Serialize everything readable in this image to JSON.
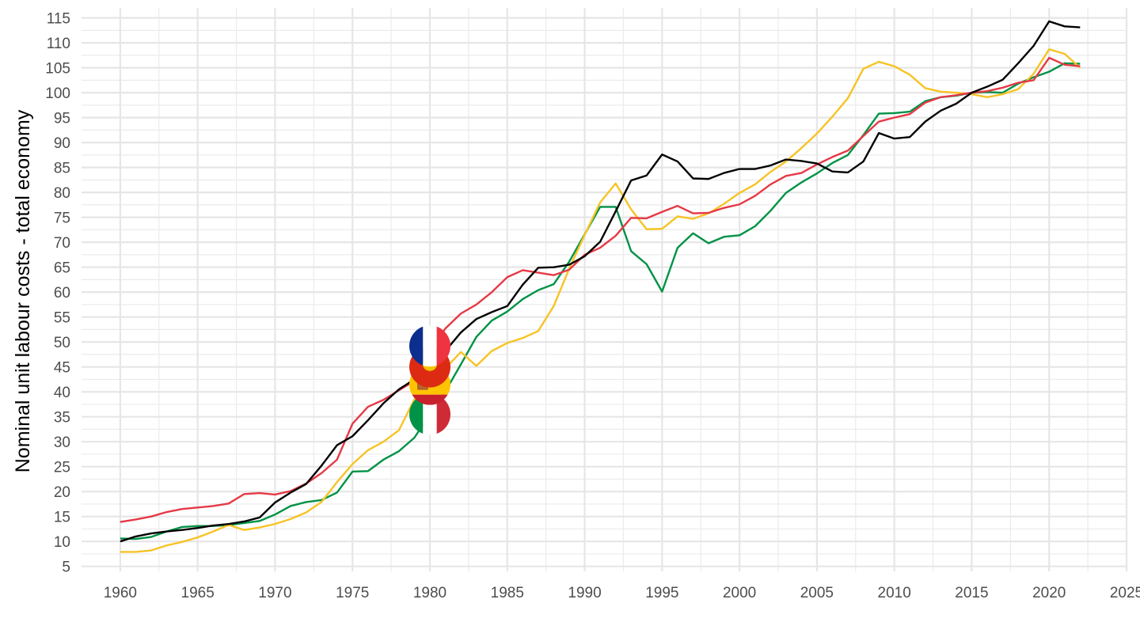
{
  "chart_data": {
    "type": "line",
    "title": "",
    "xlabel": "",
    "ylabel": "Nominal unit labour costs - total economy",
    "xlim": [
      1957.5,
      2025
    ],
    "ylim": [
      4,
      117
    ],
    "x_ticks": [
      1960,
      1965,
      1970,
      1975,
      1980,
      1985,
      1990,
      1995,
      2000,
      2005,
      2010,
      2015,
      2020,
      2025
    ],
    "y_ticks": [
      5,
      10,
      15,
      20,
      25,
      30,
      35,
      40,
      45,
      50,
      55,
      60,
      65,
      70,
      75,
      80,
      85,
      90,
      95,
      100,
      105,
      110,
      115
    ],
    "x_tick_labels": [
      "1960",
      "1965",
      "1970",
      "1975",
      "1980",
      "1985",
      "1990",
      "1995",
      "2000",
      "2005",
      "2010",
      "2015",
      "2020",
      "2025"
    ],
    "y_tick_labels": [
      "5",
      "10",
      "15",
      "20",
      "25",
      "30",
      "35",
      "40",
      "45",
      "50",
      "55",
      "60",
      "65",
      "70",
      "75",
      "80",
      "85",
      "90",
      "95",
      "100",
      "105",
      "110",
      "115"
    ],
    "grid": true,
    "legend": "flag markers at 1980",
    "years": [
      1960,
      1961,
      1962,
      1963,
      1964,
      1965,
      1966,
      1967,
      1968,
      1969,
      1970,
      1971,
      1972,
      1973,
      1974,
      1975,
      1976,
      1977,
      1978,
      1979,
      1980,
      1981,
      1982,
      1983,
      1984,
      1985,
      1986,
      1987,
      1988,
      1989,
      1990,
      1991,
      1992,
      1993,
      1994,
      1995,
      1996,
      1997,
      1998,
      1999,
      2000,
      2001,
      2002,
      2003,
      2004,
      2005,
      2006,
      2007,
      2008,
      2009,
      2010,
      2011,
      2012,
      2013,
      2014,
      2015,
      2016,
      2017,
      2018,
      2019,
      2020,
      2021,
      2022
    ],
    "series": [
      {
        "name": "Germany",
        "color": "#000000",
        "values": [
          10,
          11,
          11.6,
          12,
          12.3,
          12.7,
          13.2,
          13.5,
          14,
          14.8,
          17.8,
          19.8,
          21.5,
          25.2,
          29.3,
          31.1,
          34.3,
          37.7,
          40.5,
          42.5,
          46.5,
          48.2,
          51.9,
          54.6,
          56,
          57.2,
          61.5,
          64.9,
          65,
          65.5,
          67.2,
          70.1,
          76.2,
          82.4,
          83.4,
          87.6,
          86.2,
          82.8,
          82.7,
          83.9,
          84.7,
          84.7,
          85.4,
          86.6,
          86.3,
          85.8,
          84.2,
          84,
          86.2,
          91.9,
          90.8,
          91.1,
          94.2,
          96.4,
          97.8,
          100,
          101.2,
          102.6,
          105.9,
          109.4,
          114.3,
          113.3,
          113.1
        ]
      },
      {
        "name": "France",
        "color": "#e63946",
        "values": [
          13.9,
          14.4,
          15,
          15.9,
          16.5,
          16.8,
          17.1,
          17.6,
          19.5,
          19.7,
          19.4,
          20.1,
          21.6,
          23.7,
          26.4,
          33.6,
          37,
          38.4,
          40.3,
          42.2,
          48,
          52.7,
          55.7,
          57.5,
          60,
          63,
          64.4,
          63.9,
          63.4,
          64.5,
          67.5,
          68.9,
          71.3,
          74.9,
          74.8,
          76.1,
          77.3,
          75.8,
          75.9,
          76.9,
          77.6,
          79.3,
          81.6,
          83.3,
          83.9,
          85.6,
          87.1,
          88.4,
          91.3,
          94.2,
          95,
          95.7,
          98,
          99.1,
          99.5,
          100,
          100.3,
          101,
          102,
          102.5,
          107,
          105.6,
          105.3
        ]
      },
      {
        "name": "Spain",
        "color": "#f7c325",
        "values": [
          7.9,
          7.9,
          8.2,
          9.2,
          9.9,
          10.8,
          12,
          13.3,
          12.3,
          12.8,
          13.5,
          14.5,
          15.8,
          17.9,
          21.9,
          25.5,
          28.3,
          30,
          32.3,
          38.5,
          41.5,
          44.7,
          48,
          45.2,
          48.2,
          49.8,
          50.8,
          52.2,
          57.2,
          64.7,
          71.5,
          78,
          81.8,
          76.6,
          72.6,
          72.7,
          75.2,
          74.7,
          75.8,
          77.7,
          79.9,
          81.6,
          84.1,
          86.2,
          88.9,
          91.8,
          95.2,
          98.9,
          104.8,
          106.2,
          105.3,
          103.6,
          100.9,
          100.2,
          100,
          99.7,
          99.1,
          99.7,
          100.7,
          103.8,
          108.7,
          107.8,
          105
        ]
      },
      {
        "name": "Italy",
        "color": "#009246",
        "values": [
          10.6,
          10.5,
          10.9,
          12,
          12.9,
          13.1,
          13.1,
          13.3,
          13.7,
          14.1,
          15.4,
          17.1,
          17.9,
          18.3,
          19.8,
          24,
          24.1,
          26.4,
          28.1,
          30.8,
          35.5,
          40.1,
          45.5,
          51,
          54.3,
          56.1,
          58.6,
          60.4,
          61.6,
          66.1,
          71.6,
          77.1,
          77.1,
          68.2,
          65.6,
          60.1,
          68.9,
          71.8,
          69.8,
          71.1,
          71.4,
          73.2,
          76.3,
          79.9,
          82,
          83.8,
          85.9,
          87.5,
          91.5,
          95.8,
          95.9,
          96.2,
          98.3,
          99.1,
          99.4,
          100,
          100.1,
          100,
          101.8,
          103.1,
          104.2,
          105.9,
          105.8
        ]
      }
    ],
    "flag_markers": [
      {
        "country": "France",
        "flag": "FR",
        "x": 1980,
        "y": 49.2
      },
      {
        "country": "Germany",
        "flag": "DE",
        "x": 1980,
        "y": 45
      },
      {
        "country": "Spain",
        "flag": "ES",
        "x": 1980,
        "y": 41.5
      },
      {
        "country": "Italy",
        "flag": "IT",
        "x": 1980,
        "y": 35.5
      }
    ]
  }
}
